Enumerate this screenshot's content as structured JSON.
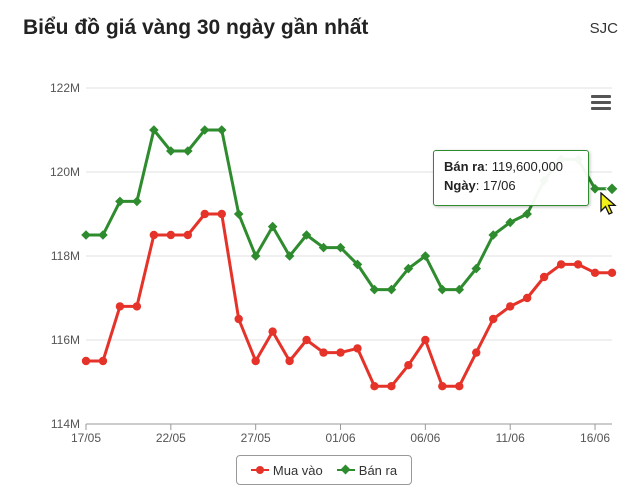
{
  "header": {
    "title": "Biểu đồ giá vàng 30 ngày gần nhất",
    "brand": "SJC"
  },
  "colors": {
    "buy": "#e5332a",
    "sell": "#2e8b2e",
    "grid": "#e0e0e0",
    "axis": "#999999"
  },
  "icons": {
    "menu": "hamburger-menu-icon",
    "cursor": "mouse-pointer-icon"
  },
  "tooltip": {
    "series_label": "Bán ra",
    "value": "119,600,000",
    "date_label": "Ngày",
    "date_value": "17/06"
  },
  "legend": {
    "buy_label": "Mua vào",
    "sell_label": "Bán ra",
    "placement": "bottom-center"
  },
  "chart_data": {
    "type": "line",
    "title": "Biểu đồ giá vàng 30 ngày gần nhất",
    "xlabel": "",
    "ylabel": "",
    "ylim": [
      114,
      122
    ],
    "y_unit": "M",
    "y_ticks": [
      "114M",
      "116M",
      "118M",
      "120M",
      "122M"
    ],
    "x_ticks": [
      "17/05",
      "22/05",
      "27/05",
      "01/06",
      "06/06",
      "11/06",
      "16/06"
    ],
    "x_tick_indices": [
      0,
      5,
      10,
      15,
      20,
      25,
      30
    ],
    "grid": true,
    "legend": "bottom-center",
    "series": [
      {
        "name": "Mua vào",
        "marker": "circle",
        "values": [
          115.5,
          115.5,
          116.8,
          116.8,
          118.5,
          118.5,
          118.5,
          119.0,
          119.0,
          116.5,
          115.5,
          116.2,
          115.5,
          116.0,
          115.7,
          115.7,
          115.8,
          114.9,
          114.9,
          115.4,
          116.0,
          114.9,
          114.9,
          115.7,
          116.5,
          116.8,
          117.0,
          117.5,
          117.8,
          117.8,
          117.6,
          117.6
        ]
      },
      {
        "name": "Bán ra",
        "marker": "diamond",
        "values": [
          118.5,
          118.5,
          119.3,
          119.3,
          121.0,
          120.5,
          120.5,
          121.0,
          121.0,
          119.0,
          118.0,
          118.7,
          118.0,
          118.5,
          118.2,
          118.2,
          117.8,
          117.2,
          117.2,
          117.7,
          118.0,
          117.2,
          117.2,
          117.7,
          118.5,
          118.8,
          119.0,
          119.8,
          120.3,
          120.3,
          119.6,
          119.6
        ]
      }
    ]
  }
}
